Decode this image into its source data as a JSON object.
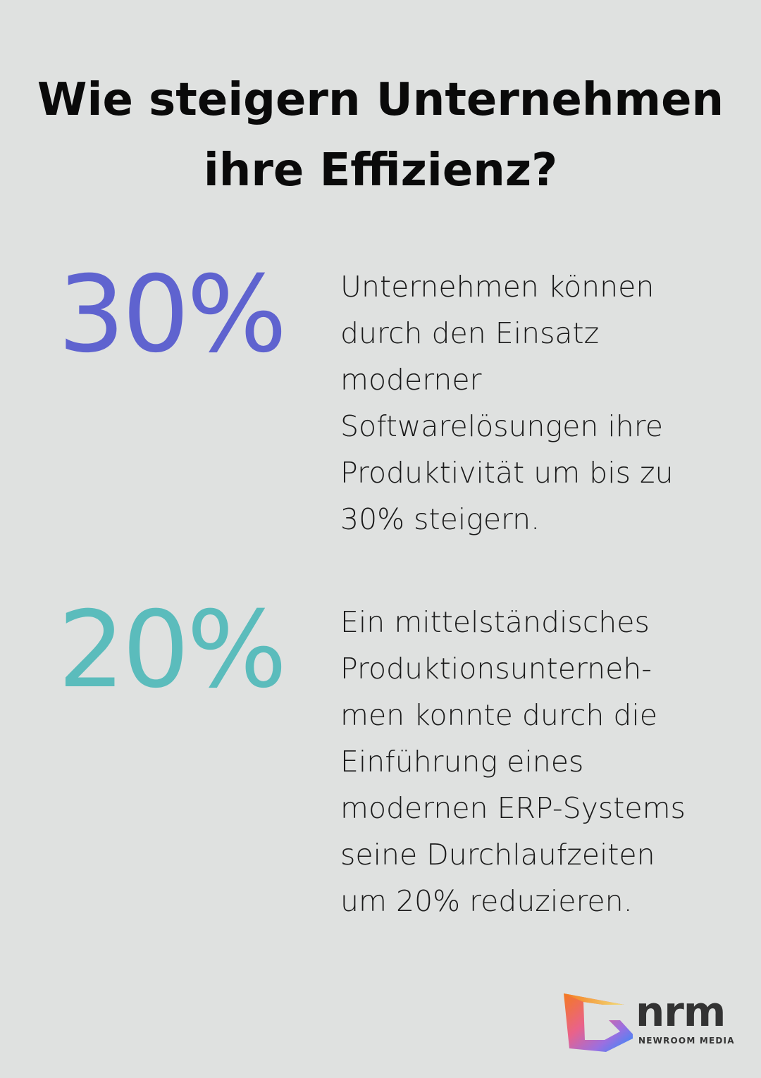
{
  "title_lines": [
    "Wie steigern Unternehmen",
    "ihre Effizienz?"
  ],
  "colors": {
    "background": "#dfe1e0",
    "stat1": "#5f63cf",
    "stat2": "#5bbcbc"
  },
  "stats": [
    {
      "value": "30%",
      "lines": [
        "Unternehmen können",
        "durch den Einsatz",
        "moderner",
        "Softwarelösungen ihre",
        "Produktivität um bis zu",
        "30% steigern."
      ]
    },
    {
      "value": "20%",
      "lines": [
        "Ein mittelständisches",
        "Produktionsunterneh-",
        "men konnte durch die",
        "Einführung eines",
        "modernen ERP-Systems",
        "seine Durchlaufzeiten",
        "um 20% reduzieren."
      ]
    }
  ],
  "logo": {
    "name": "nrm",
    "subtitle": "NEWROOM MEDIA"
  }
}
